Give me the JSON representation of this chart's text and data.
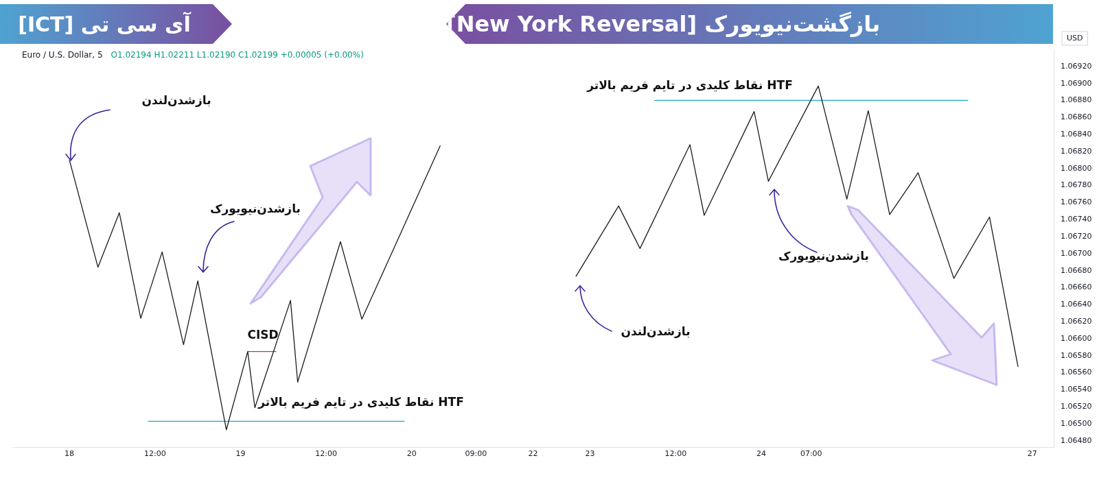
{
  "chart_data": {
    "type": "line",
    "title": "بازگشت‌نیویورک [New York Reversal]",
    "subtitle": "آی سی تی [ICT]",
    "ylabel": "USD",
    "categories": [
      null,
      null,
      null,
      null,
      null,
      null,
      null,
      null,
      "18",
      null,
      null,
      null,
      null,
      null,
      null,
      null,
      null,
      null,
      null,
      null,
      "12:00",
      null,
      null,
      null,
      null,
      null,
      null,
      null,
      null,
      null,
      null,
      null,
      "19",
      null,
      null,
      null,
      null,
      null,
      null,
      null,
      null,
      null,
      null,
      null,
      "12:00",
      null,
      null,
      null,
      null,
      null,
      null,
      null,
      null,
      null,
      null,
      null,
      "20",
      null,
      null,
      null,
      null,
      null,
      null,
      null,
      null,
      "09:00",
      null,
      null,
      null,
      null,
      null,
      null,
      null,
      "22",
      null,
      null,
      null,
      null,
      null,
      null,
      null,
      "23",
      null,
      null,
      null,
      null,
      null,
      null,
      null,
      null,
      null,
      null,
      null,
      "12:00",
      null,
      null,
      null,
      null,
      null,
      null,
      null,
      null,
      null,
      null,
      null,
      "24",
      null,
      null,
      null,
      null,
      null,
      null,
      "07:00",
      null,
      null,
      null,
      null,
      null,
      null,
      null,
      null,
      null,
      null,
      null,
      null,
      null,
      null,
      null,
      null,
      null,
      null,
      null,
      null,
      null,
      null,
      null,
      null,
      null,
      null,
      null,
      null,
      null,
      null,
      "27",
      null,
      null,
      null
    ],
    "series": [
      {
        "color": "#1a1a1a",
        "values": [
          null,
          null,
          null,
          null,
          null,
          null,
          null,
          null,
          1.0681,
          null,
          null,
          null,
          1.06684,
          null,
          null,
          1.06748,
          null,
          null,
          1.06624,
          null,
          null,
          1.06702,
          null,
          null,
          1.06593,
          null,
          1.06668,
          null,
          null,
          null,
          1.06493,
          null,
          null,
          1.06585,
          1.06519,
          null,
          null,
          null,
          null,
          1.06645,
          1.06549,
          null,
          null,
          null,
          null,
          null,
          1.06714,
          null,
          null,
          1.06623,
          null,
          null,
          null,
          null,
          null,
          null,
          null,
          null,
          null,
          null,
          1.06827,
          null,
          null,
          null,
          null,
          null,
          null,
          null,
          null,
          null,
          null,
          null,
          null,
          null,
          null,
          null,
          null,
          null,
          null,
          null,
          null,
          null,
          null,
          null,
          null,
          null,
          null,
          null,
          null,
          null,
          null,
          null,
          null,
          null,
          null,
          null,
          null,
          null,
          null,
          null,
          null,
          null,
          null,
          null,
          null,
          null,
          null,
          null,
          null,
          null,
          null,
          null,
          null,
          null,
          null,
          null,
          null,
          null,
          null,
          null,
          null,
          null,
          null,
          null,
          null,
          null,
          null,
          null,
          null,
          null,
          null,
          null,
          null,
          null,
          null,
          null,
          null,
          null,
          null,
          null,
          null,
          null,
          null,
          null,
          null,
          null,
          null
        ]
      },
      {
        "color": "#1a1a1a",
        "values": [
          null,
          null,
          null,
          null,
          null,
          null,
          null,
          null,
          null,
          null,
          null,
          null,
          null,
          null,
          null,
          null,
          null,
          null,
          null,
          null,
          null,
          null,
          null,
          null,
          null,
          null,
          null,
          null,
          null,
          null,
          null,
          null,
          null,
          null,
          null,
          null,
          null,
          null,
          null,
          null,
          null,
          null,
          null,
          null,
          null,
          null,
          null,
          null,
          null,
          null,
          null,
          null,
          null,
          null,
          null,
          null,
          null,
          null,
          null,
          null,
          null,
          null,
          null,
          null,
          null,
          null,
          null,
          null,
          null,
          null,
          null,
          null,
          null,
          null,
          null,
          null,
          null,
          null,
          null,
          1.06673,
          null,
          null,
          null,
          null,
          null,
          1.06756,
          null,
          null,
          1.06706,
          null,
          null,
          null,
          null,
          null,
          null,
          1.06828,
          null,
          1.06745,
          null,
          null,
          null,
          null,
          null,
          null,
          1.06867,
          null,
          1.06785,
          null,
          null,
          null,
          null,
          null,
          null,
          1.06897,
          null,
          null,
          null,
          1.06764,
          null,
          null,
          1.06868,
          null,
          null,
          1.06746,
          null,
          null,
          null,
          1.06795,
          null,
          null,
          null,
          null,
          1.06671,
          null,
          null,
          null,
          null,
          1.06743,
          null,
          null,
          null,
          1.06567,
          null,
          null,
          null,
          null,
          null
        ]
      },
      {
        "color": "#1fa8c8",
        "values": [
          null,
          null,
          null,
          null,
          null,
          null,
          null,
          null,
          null,
          null,
          null,
          null,
          null,
          null,
          null,
          null,
          null,
          null,
          null,
          1.06503,
          null,
          null,
          null,
          null,
          null,
          null,
          null,
          null,
          null,
          null,
          null,
          null,
          null,
          null,
          null,
          null,
          null,
          null,
          null,
          null,
          null,
          null,
          null,
          null,
          null,
          null,
          null,
          null,
          null,
          null,
          null,
          null,
          null,
          null,
          null,
          1.06503,
          null,
          null,
          null,
          null,
          null,
          null,
          null,
          null,
          null,
          null,
          null,
          null,
          null,
          null,
          null,
          null,
          null,
          null,
          null,
          null,
          null,
          null,
          null,
          null,
          null,
          null,
          null,
          null,
          null,
          null,
          null,
          null,
          null,
          null,
          null,
          null,
          null,
          null,
          null,
          null,
          null,
          null,
          null,
          null,
          null,
          null,
          null,
          null,
          null,
          null,
          null,
          null,
          null,
          null,
          null,
          null,
          null,
          null,
          null,
          null,
          null,
          null,
          null,
          null,
          null,
          null,
          null,
          null,
          null,
          null,
          null,
          null,
          null,
          null,
          null,
          null,
          null,
          null,
          null,
          null,
          null,
          null,
          null,
          null,
          null,
          null,
          null,
          null,
          null,
          null,
          null
        ]
      },
      {
        "color": "#1fa8c8",
        "values": [
          null,
          null,
          null,
          null,
          null,
          null,
          null,
          null,
          null,
          null,
          null,
          null,
          null,
          null,
          null,
          null,
          null,
          null,
          null,
          null,
          null,
          null,
          null,
          null,
          null,
          null,
          null,
          null,
          null,
          null,
          null,
          null,
          null,
          null,
          null,
          null,
          null,
          null,
          null,
          null,
          null,
          null,
          null,
          null,
          null,
          null,
          null,
          null,
          null,
          null,
          null,
          null,
          null,
          null,
          null,
          null,
          null,
          null,
          null,
          null,
          null,
          null,
          null,
          null,
          null,
          null,
          null,
          null,
          null,
          null,
          null,
          null,
          null,
          null,
          null,
          null,
          null,
          null,
          null,
          null,
          null,
          null,
          null,
          null,
          null,
          null,
          null,
          null,
          null,
          null,
          1.0688,
          null,
          null,
          null,
          null,
          null,
          null,
          null,
          null,
          null,
          null,
          null,
          null,
          null,
          null,
          null,
          null,
          null,
          null,
          null,
          null,
          null,
          null,
          null,
          null,
          null,
          null,
          null,
          null,
          null,
          null,
          null,
          null,
          null,
          null,
          null,
          null,
          null,
          null,
          null,
          null,
          null,
          null,
          null,
          1.0688,
          null,
          null,
          null,
          null,
          null,
          null,
          null,
          null,
          null,
          null,
          null,
          null
        ]
      },
      {
        "color": "#c8323c",
        "values": [
          null,
          null,
          null,
          null,
          null,
          null,
          null,
          null,
          null,
          null,
          null,
          null,
          null,
          null,
          null,
          null,
          null,
          null,
          null,
          null,
          null,
          null,
          null,
          null,
          null,
          null,
          null,
          null,
          null,
          null,
          null,
          null,
          null,
          1.06585,
          null,
          null,
          null,
          1.06585,
          null,
          null,
          null,
          null,
          null,
          null,
          null,
          null,
          null,
          null,
          null,
          null,
          null,
          null,
          null,
          null,
          null,
          null,
          null,
          null,
          null,
          null,
          null,
          null,
          null,
          null,
          null,
          null,
          null,
          null,
          null,
          null,
          null,
          null,
          null,
          null,
          null,
          null,
          null,
          null,
          null,
          null,
          null,
          null,
          null,
          null,
          null,
          null,
          null,
          null,
          null,
          null,
          null,
          null,
          null,
          null,
          null,
          null,
          null,
          null,
          null,
          null,
          null,
          null,
          null,
          null,
          null,
          null,
          null,
          null,
          null,
          null,
          null,
          null,
          null,
          null,
          null,
          null,
          null,
          null,
          null,
          null,
          null,
          null,
          null,
          null,
          null,
          null,
          null,
          null,
          null,
          null,
          null,
          null,
          null,
          null,
          null,
          null,
          null,
          null,
          null,
          null,
          null,
          null,
          null,
          null,
          null,
          null,
          null
        ]
      }
    ],
    "ylim": [
      1.06472,
      1.0694
    ],
    "yticks": [
      {
        "value": 1.0648,
        "label": "1.06480"
      },
      {
        "value": 1.065,
        "label": "1.06500"
      },
      {
        "value": 1.0652,
        "label": "1.06520"
      },
      {
        "value": 1.0654,
        "label": "1.06540"
      },
      {
        "value": 1.0656,
        "label": "1.06560"
      },
      {
        "value": 1.0658,
        "label": "1.06580"
      },
      {
        "value": 1.066,
        "label": "1.06600"
      },
      {
        "value": 1.0662,
        "label": "1.06620"
      },
      {
        "value": 1.0664,
        "label": "1.06640"
      },
      {
        "value": 1.0666,
        "label": "1.06660"
      },
      {
        "value": 1.0668,
        "label": "1.06680"
      },
      {
        "value": 1.067,
        "label": "1.06700"
      },
      {
        "value": 1.0672,
        "label": "1.06720"
      },
      {
        "value": 1.0674,
        "label": "1.06740"
      },
      {
        "value": 1.0676,
        "label": "1.06760"
      },
      {
        "value": 1.0678,
        "label": "1.06780"
      },
      {
        "value": 1.068,
        "label": "1.06800"
      },
      {
        "value": 1.0682,
        "label": "1.06820"
      },
      {
        "value": 1.0684,
        "label": "1.06840"
      },
      {
        "value": 1.0686,
        "label": "1.06860"
      },
      {
        "value": 1.0688,
        "label": "1.06880"
      },
      {
        "value": 1.069,
        "label": "1.06900"
      },
      {
        "value": 1.0692,
        "label": "1.06920"
      }
    ],
    "grid": false,
    "legend": false,
    "marker": "none",
    "line_style": "solid",
    "annotations": [
      "Euro / U.S. Dollar, 5",
      "O1.02194 H1.02211 L1.02190 C1.02199 +0.00005 (+0.00%)",
      "بازشدن‌لندن",
      "بازشدن‌نیویورک",
      "CISD",
      "HTF نقاط کلیدی در تایم فریم بالاتر",
      "HTF نقاط کلیدی در تایم فریم بالاتر",
      "بازشدن‌نیویورک",
      "بازشدن‌لندن"
    ]
  }
}
